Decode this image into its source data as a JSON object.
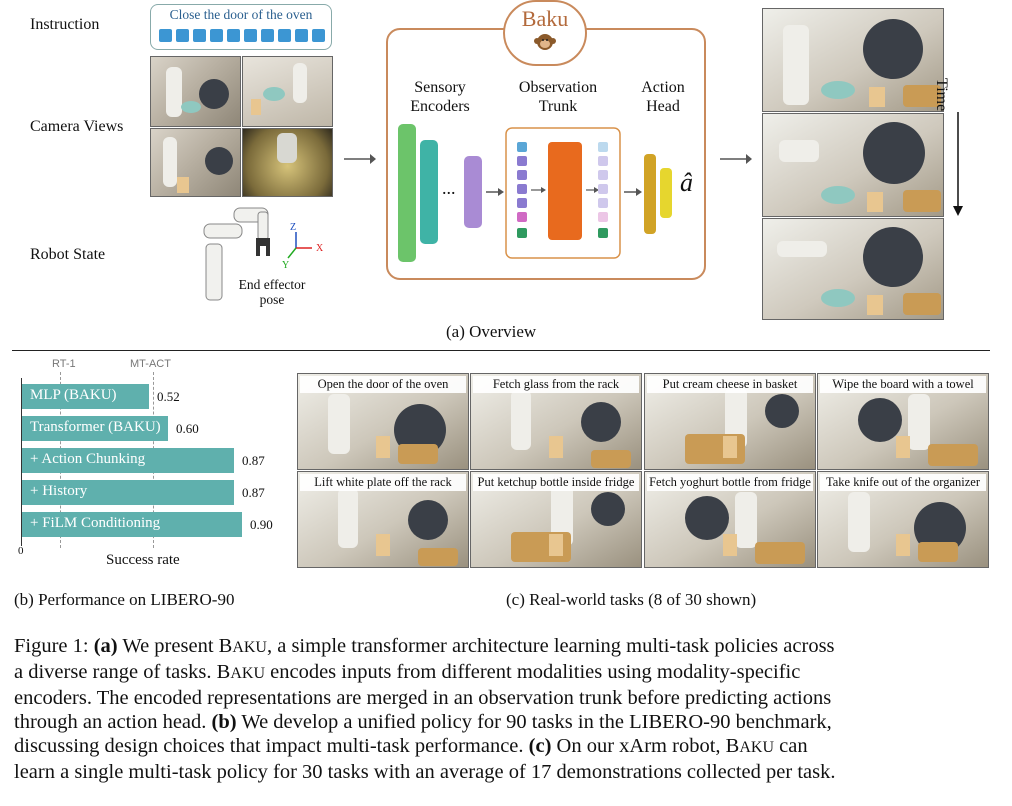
{
  "overview": {
    "row_labels": {
      "instruction": "Instruction",
      "camera": "Camera Views",
      "robot": "Robot State"
    },
    "instruction_text": "Close the door of the oven",
    "end_effector": [
      "End effector",
      "pose"
    ],
    "axes": {
      "z": "Z",
      "x": "X",
      "y": "Y"
    },
    "baku_title": "Baku",
    "modules": {
      "encoders": [
        "Sensory",
        "Encoders"
      ],
      "trunk": [
        "Observation",
        "Trunk"
      ],
      "head": [
        "Action",
        "Head"
      ]
    },
    "ellipsis": "...",
    "action_symbol": "â",
    "time_label": "Time",
    "subcaption": "(a) Overview"
  },
  "performance": {
    "subcaption": "(b) Performance on LIBERO-90",
    "xlabel": "Success rate",
    "zero_tick": "0",
    "refs": [
      "RT-1",
      "MT-ACT"
    ]
  },
  "chart_data": {
    "type": "bar",
    "orientation": "horizontal",
    "categories": [
      "MLP (BAKU)",
      "Transformer (BAKU)",
      "+ Action Chunking",
      "+ History",
      "+ FiLM Conditioning"
    ],
    "values": [
      0.52,
      0.6,
      0.87,
      0.87,
      0.9
    ],
    "value_labels": [
      "0.52",
      "0.60",
      "0.87",
      "0.87",
      "0.90"
    ],
    "xlabel": "Success rate",
    "xlim": [
      0,
      1.0
    ],
    "reference_lines": [
      {
        "name": "RT-1"
      },
      {
        "name": "MT-ACT"
      }
    ],
    "color": "#5fb0ad"
  },
  "realworld": {
    "subcaption": "(c) Real-world tasks (8 of 30 shown)",
    "tasks": [
      "Open the door of the oven",
      "Fetch glass from the rack",
      "Put cream cheese in basket",
      "Wipe the board with a towel",
      "Lift white plate off the rack",
      "Put ketchup bottle inside fridge",
      "Fetch yoghurt bottle from fridge",
      "Take knife out of the organizer"
    ]
  },
  "caption": {
    "lines": [
      [
        "Figure 1: ",
        "(a)",
        " We present B",
        "AKU",
        ", a simple transformer architecture learning multi-task policies across"
      ],
      [
        "a diverse range of tasks. B",
        "AKU",
        " encodes inputs from different modalities using modality-specific"
      ],
      [
        "encoders. The encoded representations are merged in an observation trunk before predicting actions"
      ],
      [
        "through an action head. ",
        "(b)",
        " We develop a unified policy for 90 tasks in the LIBERO-90 benchmark,"
      ],
      [
        "discussing design choices that impact multi-task performance. ",
        "(c)",
        " On our xArm robot, B",
        "AKU",
        " can"
      ],
      [
        "learn a single multi-task policy for 30 tasks with an average of 17 demonstrations collected per task."
      ]
    ]
  }
}
